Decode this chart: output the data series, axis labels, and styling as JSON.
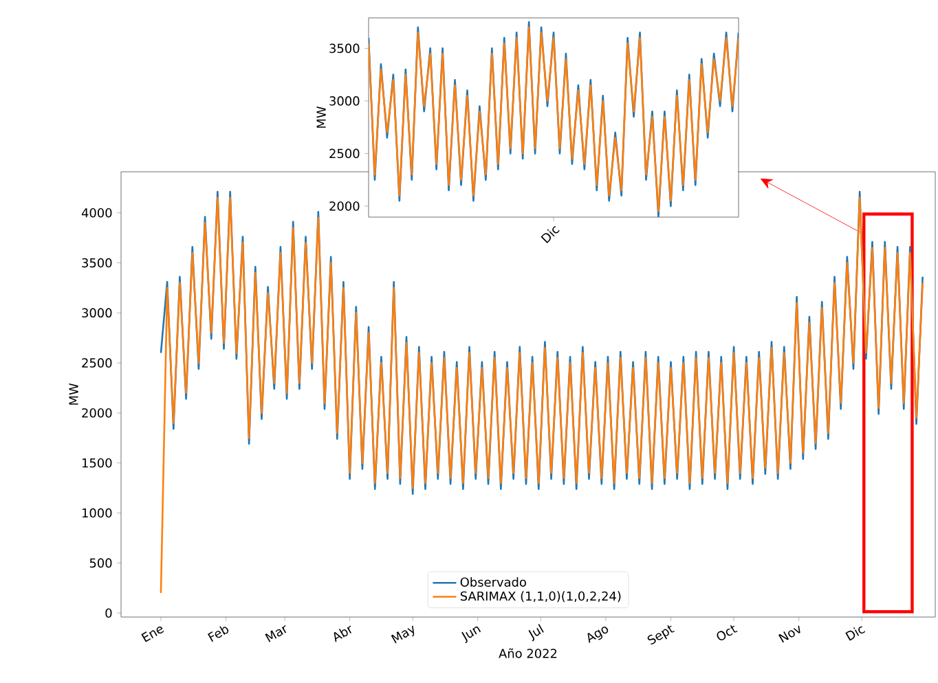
{
  "chart_data": [
    {
      "type": "line",
      "xlabel": "Año 2022",
      "ylabel": "MW",
      "xlim": [
        "2021-12-13",
        "2023-01-05"
      ],
      "ylim": [
        -40,
        4410
      ],
      "xticks": [
        {
          "value": "2022-01-01",
          "label": "Ene"
        },
        {
          "value": "2022-02-01",
          "label": "Feb"
        },
        {
          "value": "2022-03-01",
          "label": "Mar"
        },
        {
          "value": "2022-04-01",
          "label": "Abr"
        },
        {
          "value": "2022-05-01",
          "label": "May"
        },
        {
          "value": "2022-06-01",
          "label": "Jun"
        },
        {
          "value": "2022-07-01",
          "label": "Jul"
        },
        {
          "value": "2022-08-01",
          "label": "Ago"
        },
        {
          "value": "2022-09-01",
          "label": "Sept"
        },
        {
          "value": "2022-10-01",
          "label": "Oct"
        },
        {
          "value": "2022-11-01",
          "label": "Nov"
        },
        {
          "value": "2022-12-01",
          "label": "Dic"
        }
      ],
      "yticks": [
        0,
        500,
        1000,
        1500,
        2000,
        2500,
        3000,
        3500,
        4000
      ],
      "legend": "bottom",
      "bands": [
        {
          "axis": "x",
          "from": "2022-12-02",
          "to": "2022-12-25",
          "color": "#ff0000"
        }
      ],
      "x": [
        "2022-01-01",
        "2022-01-04",
        "2022-01-07",
        "2022-01-10",
        "2022-01-13",
        "2022-01-16",
        "2022-01-19",
        "2022-01-22",
        "2022-01-25",
        "2022-01-28",
        "2022-01-31",
        "2022-02-03",
        "2022-02-06",
        "2022-02-09",
        "2022-02-12",
        "2022-02-15",
        "2022-02-18",
        "2022-02-21",
        "2022-02-24",
        "2022-02-27",
        "2022-03-02",
        "2022-03-05",
        "2022-03-08",
        "2022-03-11",
        "2022-03-14",
        "2022-03-17",
        "2022-03-20",
        "2022-03-23",
        "2022-03-26",
        "2022-03-29",
        "2022-04-01",
        "2022-04-04",
        "2022-04-07",
        "2022-04-10",
        "2022-04-13",
        "2022-04-16",
        "2022-04-19",
        "2022-04-22",
        "2022-04-25",
        "2022-04-28",
        "2022-05-01",
        "2022-05-04",
        "2022-05-07",
        "2022-05-10",
        "2022-05-13",
        "2022-05-16",
        "2022-05-19",
        "2022-05-22",
        "2022-05-25",
        "2022-05-28",
        "2022-05-31",
        "2022-06-03",
        "2022-06-06",
        "2022-06-09",
        "2022-06-12",
        "2022-06-15",
        "2022-06-18",
        "2022-06-21",
        "2022-06-24",
        "2022-06-27",
        "2022-06-30",
        "2022-07-03",
        "2022-07-06",
        "2022-07-09",
        "2022-07-12",
        "2022-07-15",
        "2022-07-18",
        "2022-07-21",
        "2022-07-24",
        "2022-07-27",
        "2022-07-30",
        "2022-08-02",
        "2022-08-05",
        "2022-08-08",
        "2022-08-11",
        "2022-08-14",
        "2022-08-17",
        "2022-08-20",
        "2022-08-23",
        "2022-08-26",
        "2022-08-29",
        "2022-09-01",
        "2022-09-04",
        "2022-09-07",
        "2022-09-10",
        "2022-09-13",
        "2022-09-16",
        "2022-09-19",
        "2022-09-22",
        "2022-09-25",
        "2022-09-28",
        "2022-10-01",
        "2022-10-04",
        "2022-10-07",
        "2022-10-10",
        "2022-10-13",
        "2022-10-16",
        "2022-10-19",
        "2022-10-22",
        "2022-10-25",
        "2022-10-28",
        "2022-10-31",
        "2022-11-03",
        "2022-11-06",
        "2022-11-09",
        "2022-11-12",
        "2022-11-15",
        "2022-11-18",
        "2022-11-21",
        "2022-11-24",
        "2022-11-27",
        "2022-11-30",
        "2022-12-03",
        "2022-12-06",
        "2022-12-09",
        "2022-12-12",
        "2022-12-15",
        "2022-12-18",
        "2022-12-21",
        "2022-12-24",
        "2022-12-27",
        "2022-12-30"
      ],
      "series": [
        {
          "name": "Observado",
          "color": "#1f77b4",
          "values": [
            2600,
            3310,
            1840,
            3360,
            2140,
            3660,
            2440,
            3960,
            2740,
            4210,
            2640,
            4210,
            2540,
            3760,
            1690,
            3460,
            1940,
            3260,
            2240,
            3660,
            2140,
            3910,
            2240,
            3760,
            2440,
            4010,
            2040,
            3560,
            1740,
            3310,
            1340,
            3060,
            1440,
            2860,
            1240,
            2560,
            1340,
            3310,
            1290,
            2760,
            1190,
            2660,
            1240,
            2560,
            1340,
            2610,
            1290,
            2510,
            1240,
            2660,
            1340,
            2510,
            1290,
            2610,
            1240,
            2510,
            1340,
            2660,
            1290,
            2560,
            1240,
            2710,
            1340,
            2610,
            1290,
            2560,
            1240,
            2660,
            1340,
            2510,
            1290,
            2560,
            1240,
            2610,
            1340,
            2510,
            1290,
            2610,
            1240,
            2560,
            1290,
            2510,
            1340,
            2560,
            1240,
            2610,
            1290,
            2610,
            1340,
            2560,
            1240,
            2660,
            1340,
            2560,
            1290,
            2610,
            1390,
            2710,
            1340,
            2660,
            1440,
            3160,
            1540,
            2960,
            1640,
            3110,
            1740,
            3360,
            2040,
            3560,
            2440,
            4210,
            2540,
            3710,
            1990,
            3710,
            2240,
            3660,
            2040,
            3660,
            1890,
            3360
          ]
        },
        {
          "name": "SARIMAX (1,1,0)(1,0,2,24)",
          "color": "#ff7f0e",
          "values": [
            200,
            3250,
            1900,
            3300,
            2200,
            3600,
            2500,
            3900,
            2800,
            4150,
            2700,
            4150,
            2600,
            3700,
            1750,
            3400,
            2000,
            3200,
            2300,
            3600,
            2200,
            3850,
            2300,
            3700,
            2500,
            3950,
            2100,
            3500,
            1800,
            3250,
            1400,
            3000,
            1500,
            2800,
            1300,
            2500,
            1400,
            3250,
            1350,
            2700,
            1250,
            2600,
            1300,
            2500,
            1400,
            2550,
            1350,
            2450,
            1300,
            2600,
            1400,
            2450,
            1350,
            2550,
            1300,
            2450,
            1400,
            2600,
            1350,
            2500,
            1300,
            2650,
            1400,
            2550,
            1350,
            2500,
            1300,
            2600,
            1400,
            2450,
            1350,
            2500,
            1300,
            2550,
            1400,
            2450,
            1350,
            2550,
            1300,
            2500,
            1350,
            2450,
            1400,
            2500,
            1300,
            2550,
            1350,
            2550,
            1400,
            2500,
            1300,
            2600,
            1400,
            2500,
            1350,
            2550,
            1450,
            2650,
            1400,
            2600,
            1500,
            3100,
            1600,
            2900,
            1700,
            3050,
            1800,
            3300,
            2100,
            3500,
            2500,
            4150,
            2600,
            3650,
            2050,
            3650,
            2300,
            3600,
            2100,
            3600,
            1950,
            3300
          ]
        }
      ]
    },
    {
      "type": "line",
      "ylabel": "MW",
      "ylim": [
        1895,
        3790
      ],
      "yticks": [
        2000,
        2500,
        3000,
        3500
      ],
      "categories": [
        null,
        null,
        null,
        null,
        null,
        null,
        null,
        null,
        null,
        null,
        null,
        null,
        null,
        null,
        null,
        null,
        null,
        null,
        null,
        null,
        null,
        null,
        null,
        null,
        null,
        null,
        null,
        null,
        null,
        null,
        "Dic",
        null,
        null,
        null,
        null,
        null,
        null,
        null,
        null,
        null,
        null,
        null,
        null,
        null,
        null,
        null,
        null,
        null,
        null,
        null,
        null,
        null,
        null,
        null,
        null,
        null,
        null,
        null,
        null,
        null,
        null
      ],
      "series": [
        {
          "color": "#1f77b4",
          "values": [
            3600,
            2250,
            3350,
            2650,
            3250,
            2050,
            3300,
            2250,
            3700,
            2900,
            3500,
            2350,
            3500,
            2150,
            3200,
            2200,
            3100,
            2050,
            2950,
            2250,
            3500,
            2350,
            3600,
            2500,
            3650,
            2450,
            3750,
            2500,
            3700,
            2950,
            3650,
            2500,
            3450,
            2400,
            3150,
            2350,
            3200,
            2150,
            3050,
            2050,
            2700,
            2100,
            3600,
            2850,
            3650,
            2250,
            2900,
            1900,
            2900,
            2000,
            3100,
            2150,
            3250,
            2200,
            3400,
            2650,
            3450,
            2950,
            3650,
            2900,
            3650
          ]
        },
        {
          "color": "#ff7f0e",
          "values": [
            3550,
            2300,
            3300,
            2700,
            3200,
            2100,
            3250,
            2300,
            3650,
            2950,
            3450,
            2400,
            3450,
            2200,
            3150,
            2250,
            3050,
            2100,
            2900,
            2300,
            3450,
            2400,
            3550,
            2550,
            3600,
            2500,
            3700,
            2550,
            3650,
            3000,
            3600,
            2550,
            3400,
            2450,
            3100,
            2400,
            3150,
            2200,
            3000,
            2100,
            2650,
            2150,
            3550,
            2900,
            3600,
            2300,
            2850,
            1950,
            2850,
            2050,
            3050,
            2200,
            3200,
            2250,
            3350,
            2700,
            3400,
            3000,
            3600,
            2950,
            3600
          ]
        }
      ]
    }
  ]
}
